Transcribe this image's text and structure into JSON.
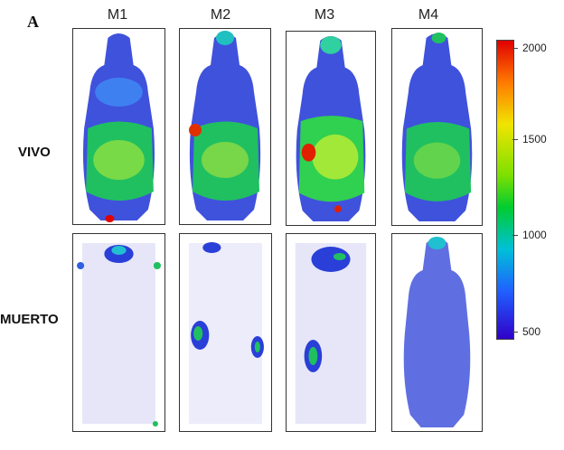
{
  "panel": {
    "letter": "A"
  },
  "columns": [
    {
      "label": "M1"
    },
    {
      "label": "M2"
    },
    {
      "label": "M3"
    },
    {
      "label": "M4"
    }
  ],
  "rows": [
    {
      "label": "VIVO"
    },
    {
      "label": "MUERTO"
    }
  ],
  "scale": {
    "labels": [
      "2000",
      "1500",
      "1000",
      "500"
    ],
    "colors": {
      "top": "#e00000",
      "upper": "#ff7a00",
      "mid_high": "#f0e400",
      "mid": "#00cc30",
      "mid_low": "#00c0d8",
      "low": "#2060ff",
      "bottom": "#3000c8"
    }
  }
}
